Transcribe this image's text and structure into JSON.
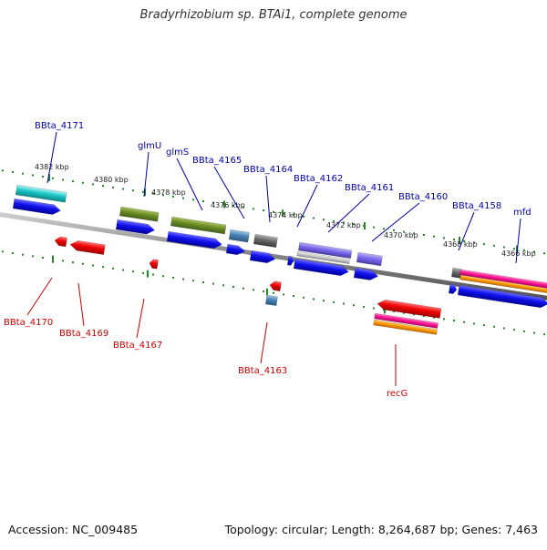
{
  "title": "Bradyrhizobium sp. BTAi1, complete genome",
  "accession": "Accession: NC_009485",
  "topology": "Topology: circular; Length: 8,264,687 bp; Genes: 7,463",
  "colors": {
    "forward_label": "#0000aa",
    "reverse_label": "#cc0000",
    "tick": "#228b22",
    "backbone": "#808080"
  },
  "scale_labels": [
    "4382 kbp",
    "4380 kbp",
    "4378 kbp",
    "4376 kbp",
    "4374 kbp",
    "4372 kbp",
    "4370 kbp",
    "4368 kbp",
    "4366 kbp"
  ],
  "forward_genes": [
    "BBta_4171",
    "glmU",
    "glmS",
    "BBta_4165",
    "BBta_4164",
    "BBta_4162",
    "BBta_4161",
    "BBta_4160",
    "BBta_4158",
    "mfd"
  ],
  "reverse_genes": [
    "BBta_4170",
    "BBta_4169",
    "BBta_4167",
    "BBta_4163",
    "recG"
  ]
}
